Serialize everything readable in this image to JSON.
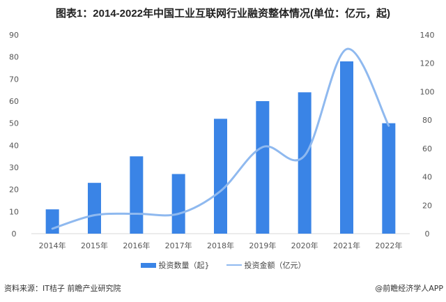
{
  "chart_data": {
    "type": "bar+line",
    "title": "图表1：2014-2022年中国工业互联网行业融资整体情况(单位：亿元，起)",
    "categories": [
      "2014年",
      "2015年",
      "2016年",
      "2017年",
      "2018年",
      "2019年",
      "2020年",
      "2021年",
      "2022年"
    ],
    "series": [
      {
        "name": "投资数量（起）",
        "type": "bar",
        "axis": "left",
        "color": "#3a84e6",
        "values": [
          11,
          23,
          35,
          27,
          52,
          60,
          64,
          78,
          50
        ]
      },
      {
        "name": "投资金额（亿元）",
        "type": "line",
        "axis": "right",
        "color": "#8fb9ef",
        "smooth": true,
        "values": [
          3.5,
          13,
          14,
          14,
          30,
          61,
          55,
          130,
          76
        ]
      }
    ],
    "y_left": {
      "lim": [
        0,
        90
      ],
      "ticks": [
        0,
        10,
        20,
        30,
        40,
        50,
        60,
        70,
        80,
        90
      ]
    },
    "y_right": {
      "lim": [
        0,
        140
      ],
      "ticks": [
        0,
        20,
        40,
        60,
        80,
        100,
        120,
        140
      ]
    },
    "grid": false,
    "legend": "bottom"
  },
  "legend_labels": {
    "bar": "投资数量（起}",
    "line": "投资金额（亿元）"
  },
  "source": "资料来源：IT桔子 前瞻产业研究院",
  "credit": "@前瞻经济学人APP"
}
